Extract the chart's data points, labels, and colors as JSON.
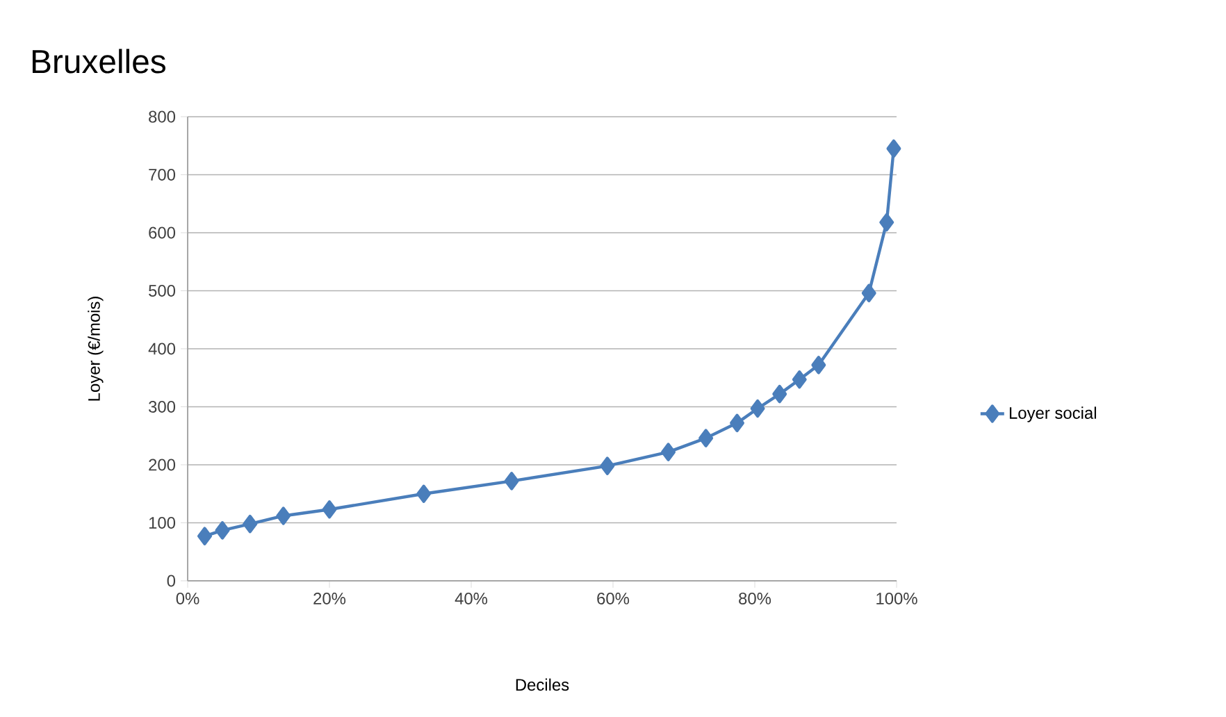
{
  "chart_data": {
    "type": "line",
    "title": "Bruxelles",
    "xlabel": "Deciles",
    "ylabel": "Loyer (€/mois)",
    "x": [
      2.4,
      4.9,
      8.8,
      13.5,
      20,
      33.3,
      45.7,
      59.2,
      67.8,
      73.1,
      77.5,
      80.4,
      83.5,
      86.3,
      89,
      96.1,
      98.6,
      99.6
    ],
    "series": [
      {
        "name": "Loyer social",
        "color": "#4a7ebb",
        "values": [
          77,
          87,
          98,
          112,
          123,
          150,
          172,
          198,
          222,
          246,
          272,
          297,
          322,
          347,
          372,
          496,
          618,
          745
        ]
      }
    ],
    "xlim": [
      0,
      100
    ],
    "xticks": [
      {
        "value": 0,
        "label": "0%"
      },
      {
        "value": 20,
        "label": "20%"
      },
      {
        "value": 40,
        "label": "40%"
      },
      {
        "value": 60,
        "label": "60%"
      },
      {
        "value": 80,
        "label": "80%"
      },
      {
        "value": 100,
        "label": "100%"
      }
    ],
    "ylim": [
      0,
      800
    ],
    "yticks": [
      0,
      100,
      200,
      300,
      400,
      500,
      600,
      700,
      800
    ],
    "grid": "y",
    "legend": "right",
    "marker": "diamond",
    "line_style": "solid"
  }
}
